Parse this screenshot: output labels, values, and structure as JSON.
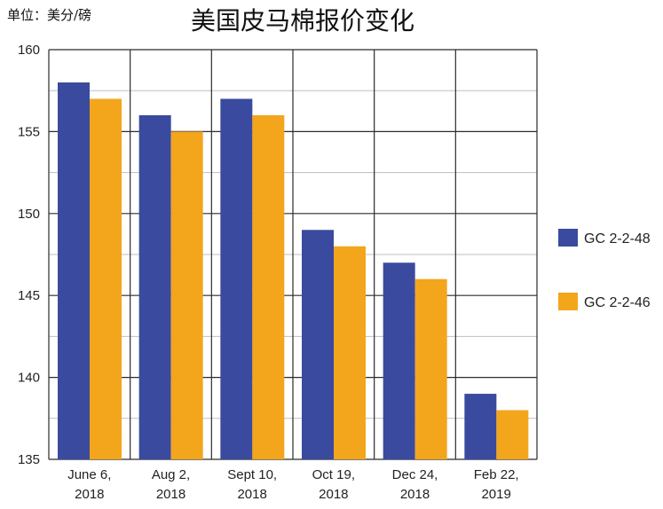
{
  "unit_label": "单位：美分/磅",
  "title": "美国皮马棉报价变化",
  "colors": {
    "series_1": "#3a4a9e",
    "series_2": "#f3a51c",
    "grid": "#2b2b2b",
    "minor_grid": "#bfbfbf"
  },
  "chart_data": {
    "type": "bar",
    "title": "美国皮马棉报价变化",
    "xlabel": "",
    "ylabel": "",
    "ylim": [
      135,
      160
    ],
    "yticks": [
      "135",
      "140",
      "145",
      "150",
      "155",
      "160"
    ],
    "categories": [
      [
        "June 6,",
        "2018"
      ],
      [
        "Aug 2,",
        "2018"
      ],
      [
        "Sept 10,",
        "2018"
      ],
      [
        "Oct 19,",
        "2018"
      ],
      [
        "Dec 24,",
        "2018"
      ],
      [
        "Feb 22,",
        "2019"
      ]
    ],
    "series": [
      {
        "name": "GC 2-2-48",
        "values": [
          158,
          156,
          157,
          149,
          147,
          139
        ]
      },
      {
        "name": "GC 2-2-46",
        "values": [
          157,
          155,
          156,
          148,
          146,
          138
        ]
      }
    ],
    "legend_position": "right",
    "grid": true
  }
}
